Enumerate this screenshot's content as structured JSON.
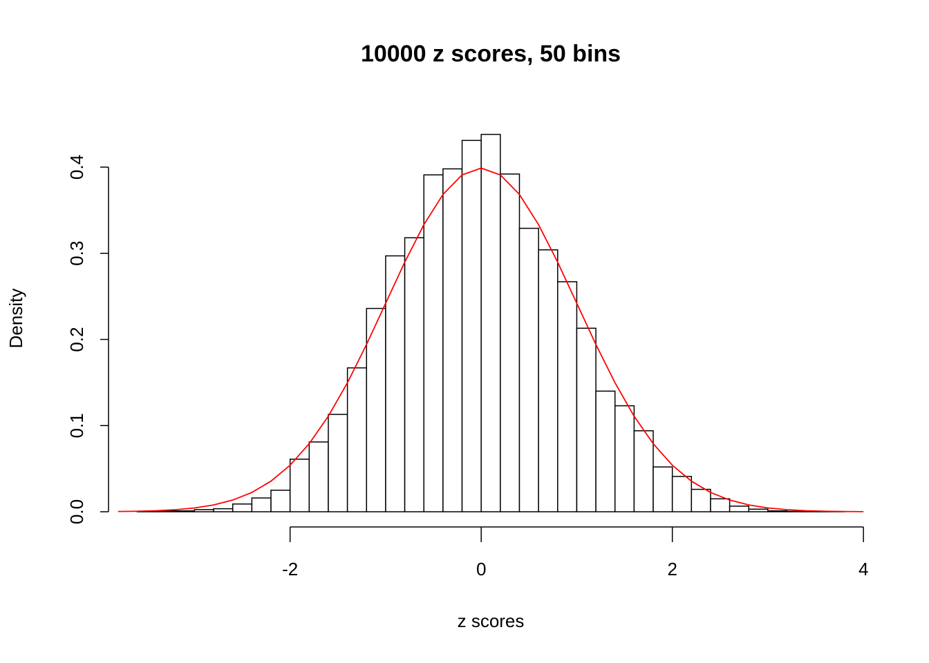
{
  "chart_data": {
    "type": "histogram",
    "title": "10000 z scores, 50 bins",
    "xlabel": "z scores",
    "ylabel": "Density",
    "bins": [
      -3.6,
      -3.4,
      -3.2,
      -3.0,
      -2.8,
      -2.6,
      -2.4,
      -2.2,
      -2.0,
      -1.8,
      -1.6,
      -1.4,
      -1.2,
      -1.0,
      -0.8,
      -0.6,
      -0.4,
      -0.2,
      0,
      0.2,
      0.4,
      0.6,
      0.8,
      1.0,
      1.2,
      1.4,
      1.6,
      1.8,
      2.0,
      2.2,
      2.4,
      2.6,
      2.8,
      3.0,
      3.2,
      3.4,
      3.6,
      3.8
    ],
    "values": [
      0.0005,
      0.001,
      0.001,
      0.0025,
      0.0035,
      0.009,
      0.016,
      0.025,
      0.061,
      0.081,
      0.113,
      0.167,
      0.236,
      0.297,
      0.318,
      0.391,
      0.398,
      0.431,
      0.438,
      0.392,
      0.329,
      0.304,
      0.267,
      0.213,
      0.14,
      0.123,
      0.094,
      0.052,
      0.041,
      0.026,
      0.015,
      0.0065,
      0.003,
      0.001,
      0.0005,
      0.0003,
      0.0002
    ],
    "color": "white",
    "curve": {
      "color": "red",
      "x": [
        -3.8,
        -3.6,
        -3.4,
        -3.2,
        -3.0,
        -2.8,
        -2.6,
        -2.4,
        -2.2,
        -2.0,
        -1.8,
        -1.6,
        -1.4,
        -1.2,
        -1.0,
        -0.8,
        -0.6,
        -0.4,
        -0.2,
        0,
        0.2,
        0.4,
        0.6,
        0.8,
        1.0,
        1.2,
        1.4,
        1.6,
        1.8,
        2.0,
        2.2,
        2.4,
        2.6,
        2.8,
        3.0,
        3.2,
        3.4,
        3.6,
        3.8,
        4.0
      ],
      "values": [
        0.0003,
        0.0006,
        0.0012,
        0.0024,
        0.0044,
        0.0079,
        0.0136,
        0.0224,
        0.0355,
        0.054,
        0.079,
        0.1109,
        0.1497,
        0.1942,
        0.242,
        0.2897,
        0.3332,
        0.3683,
        0.391,
        0.3989,
        0.391,
        0.3683,
        0.3332,
        0.2897,
        0.242,
        0.1942,
        0.1497,
        0.1109,
        0.079,
        0.054,
        0.0355,
        0.0224,
        0.0136,
        0.0079,
        0.0044,
        0.0024,
        0.0012,
        0.0006,
        0.0003,
        0.0001
      ]
    },
    "xlim": [
      -3.9,
      4.1
    ],
    "xticks": [
      -2,
      0,
      2,
      4
    ],
    "ylim": [
      0,
      0.44
    ],
    "yticks": [
      {
        "value": 0,
        "label": "0.0"
      },
      0.1,
      0.2,
      0.3,
      0.4
    ]
  }
}
